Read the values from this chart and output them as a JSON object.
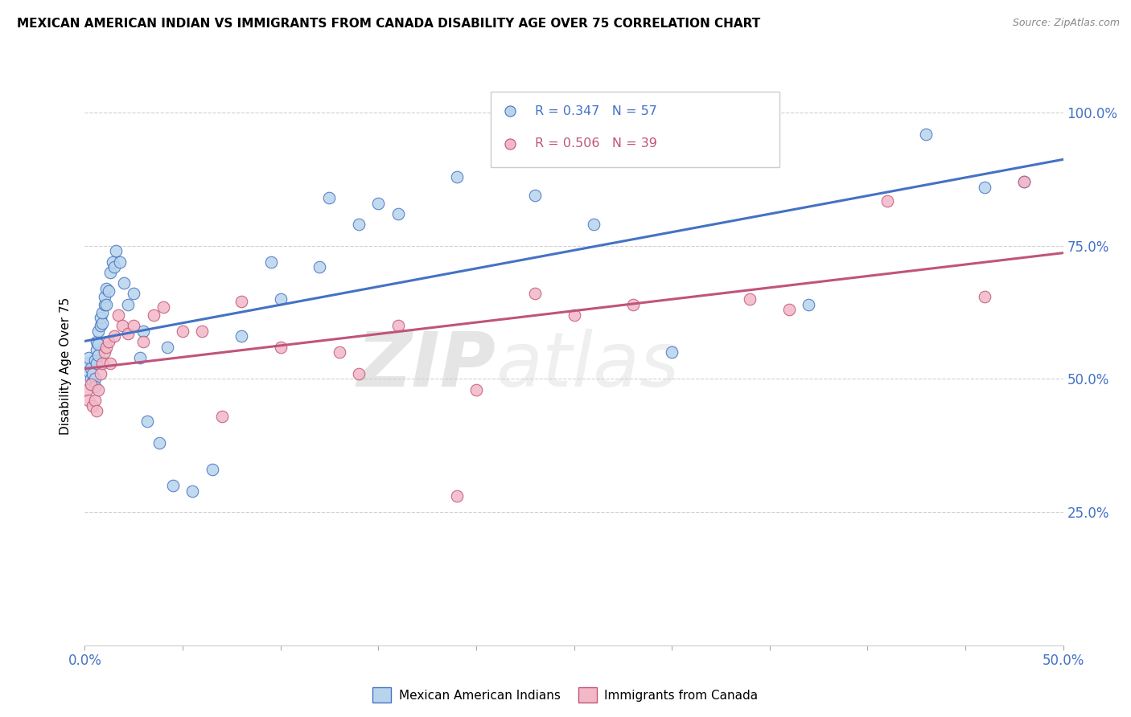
{
  "title": "MEXICAN AMERICAN INDIAN VS IMMIGRANTS FROM CANADA DISABILITY AGE OVER 75 CORRELATION CHART",
  "source": "Source: ZipAtlas.com",
  "ylabel": "Disability Age Over 75",
  "legend_label_blue": "Mexican American Indians",
  "legend_label_pink": "Immigrants from Canada",
  "color_blue": "#B8D4EC",
  "color_pink": "#F2B8C6",
  "line_color_blue": "#4472C4",
  "line_color_pink": "#C0547A",
  "watermark_zip": "ZIP",
  "watermark_atlas": "atlas",
  "blue_x": [
    0.001,
    0.002,
    0.002,
    0.003,
    0.003,
    0.004,
    0.004,
    0.005,
    0.005,
    0.005,
    0.006,
    0.006,
    0.006,
    0.007,
    0.007,
    0.007,
    0.008,
    0.008,
    0.009,
    0.009,
    0.01,
    0.01,
    0.011,
    0.011,
    0.012,
    0.013,
    0.014,
    0.015,
    0.016,
    0.018,
    0.02,
    0.022,
    0.025,
    0.028,
    0.032,
    0.038,
    0.045,
    0.055,
    0.065,
    0.08,
    0.1,
    0.12,
    0.15,
    0.19,
    0.23,
    0.26,
    0.3,
    0.37,
    0.43,
    0.46,
    0.48,
    0.125,
    0.14,
    0.16,
    0.095,
    0.03,
    0.042
  ],
  "blue_y": [
    0.53,
    0.515,
    0.54,
    0.5,
    0.52,
    0.495,
    0.51,
    0.5,
    0.485,
    0.535,
    0.53,
    0.555,
    0.57,
    0.545,
    0.565,
    0.59,
    0.6,
    0.615,
    0.605,
    0.625,
    0.64,
    0.655,
    0.64,
    0.67,
    0.665,
    0.7,
    0.72,
    0.71,
    0.74,
    0.72,
    0.68,
    0.64,
    0.66,
    0.54,
    0.42,
    0.38,
    0.3,
    0.29,
    0.33,
    0.58,
    0.65,
    0.71,
    0.83,
    0.88,
    0.845,
    0.79,
    0.55,
    0.64,
    0.96,
    0.86,
    0.87,
    0.84,
    0.79,
    0.81,
    0.72,
    0.59,
    0.56
  ],
  "pink_x": [
    0.001,
    0.002,
    0.003,
    0.004,
    0.005,
    0.006,
    0.007,
    0.008,
    0.009,
    0.01,
    0.011,
    0.012,
    0.013,
    0.015,
    0.017,
    0.019,
    0.022,
    0.025,
    0.03,
    0.035,
    0.04,
    0.05,
    0.06,
    0.08,
    0.1,
    0.13,
    0.16,
    0.19,
    0.23,
    0.25,
    0.28,
    0.34,
    0.36,
    0.41,
    0.46,
    0.48,
    0.2,
    0.14,
    0.07
  ],
  "pink_y": [
    0.48,
    0.46,
    0.49,
    0.45,
    0.46,
    0.44,
    0.48,
    0.51,
    0.53,
    0.55,
    0.56,
    0.57,
    0.53,
    0.58,
    0.62,
    0.6,
    0.585,
    0.6,
    0.57,
    0.62,
    0.635,
    0.59,
    0.59,
    0.645,
    0.56,
    0.55,
    0.6,
    0.28,
    0.66,
    0.62,
    0.64,
    0.65,
    0.63,
    0.835,
    0.655,
    0.87,
    0.48,
    0.51,
    0.43
  ]
}
